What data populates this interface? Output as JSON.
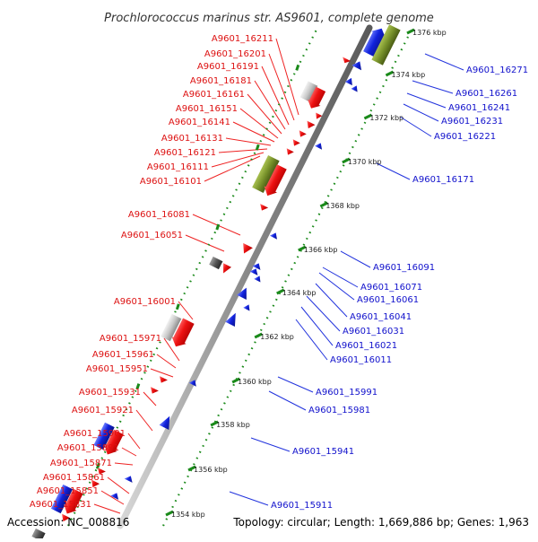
{
  "title": "Prochlorococcus marinus str. AS9601, complete genome",
  "footer": {
    "accession": "Accession: NC_008816",
    "topology": "Topology: circular; Length: 1,669,886 bp; Genes: 1,963"
  },
  "colors": {
    "forward": "#ee1111",
    "reverse": "#1122dd",
    "rna": "#77912a",
    "gray": "#c8c8c8",
    "dark": "#555555",
    "dots": "#1a8a1a"
  },
  "kbp_ticks": [
    {
      "label": "1354 kbp",
      "kbp": 1354
    },
    {
      "label": "1356 kbp",
      "kbp": 1356
    },
    {
      "label": "1358 kbp",
      "kbp": 1358
    },
    {
      "label": "1360 kbp",
      "kbp": 1360
    },
    {
      "label": "1362 kbp",
      "kbp": 1362
    },
    {
      "label": "1364 kbp",
      "kbp": 1364
    },
    {
      "label": "1366 kbp",
      "kbp": 1366
    },
    {
      "label": "1368 kbp",
      "kbp": 1368
    },
    {
      "label": "1370 kbp",
      "kbp": 1370
    },
    {
      "label": "1372 kbp",
      "kbp": 1372
    },
    {
      "label": "1374 kbp",
      "kbp": 1374
    },
    {
      "label": "1376 kbp",
      "kbp": 1376
    }
  ],
  "red_labels": [
    "A9601_16211",
    "A9601_16201",
    "A9601_16191",
    "A9601_16181",
    "A9601_16161",
    "A9601_16151",
    "A9601_16141",
    "A9601_16131",
    "A9601_16121",
    "A9601_16111",
    "A9601_16101",
    "A9601_16081",
    "A9601_16051",
    "A9601_16001",
    "A9601_15971",
    "A9601_15961",
    "A9601_15951",
    "A9601_15931",
    "A9601_15921",
    "A9601_15901",
    "A9601_15891",
    "A9601_15871",
    "A9601_15861",
    "A9601_15851",
    "A9601_15831"
  ],
  "blue_labels": [
    "A9601_16271",
    "A9601_16261",
    "A9601_16241",
    "A9601_16231",
    "A9601_16221",
    "A9601_16171",
    "A9601_16091",
    "A9601_16071",
    "A9601_16061",
    "A9601_16041",
    "A9601_16031",
    "A9601_16021",
    "A9601_16011",
    "A9601_15991",
    "A9601_15981",
    "A9601_15941",
    "A9601_15911"
  ]
}
